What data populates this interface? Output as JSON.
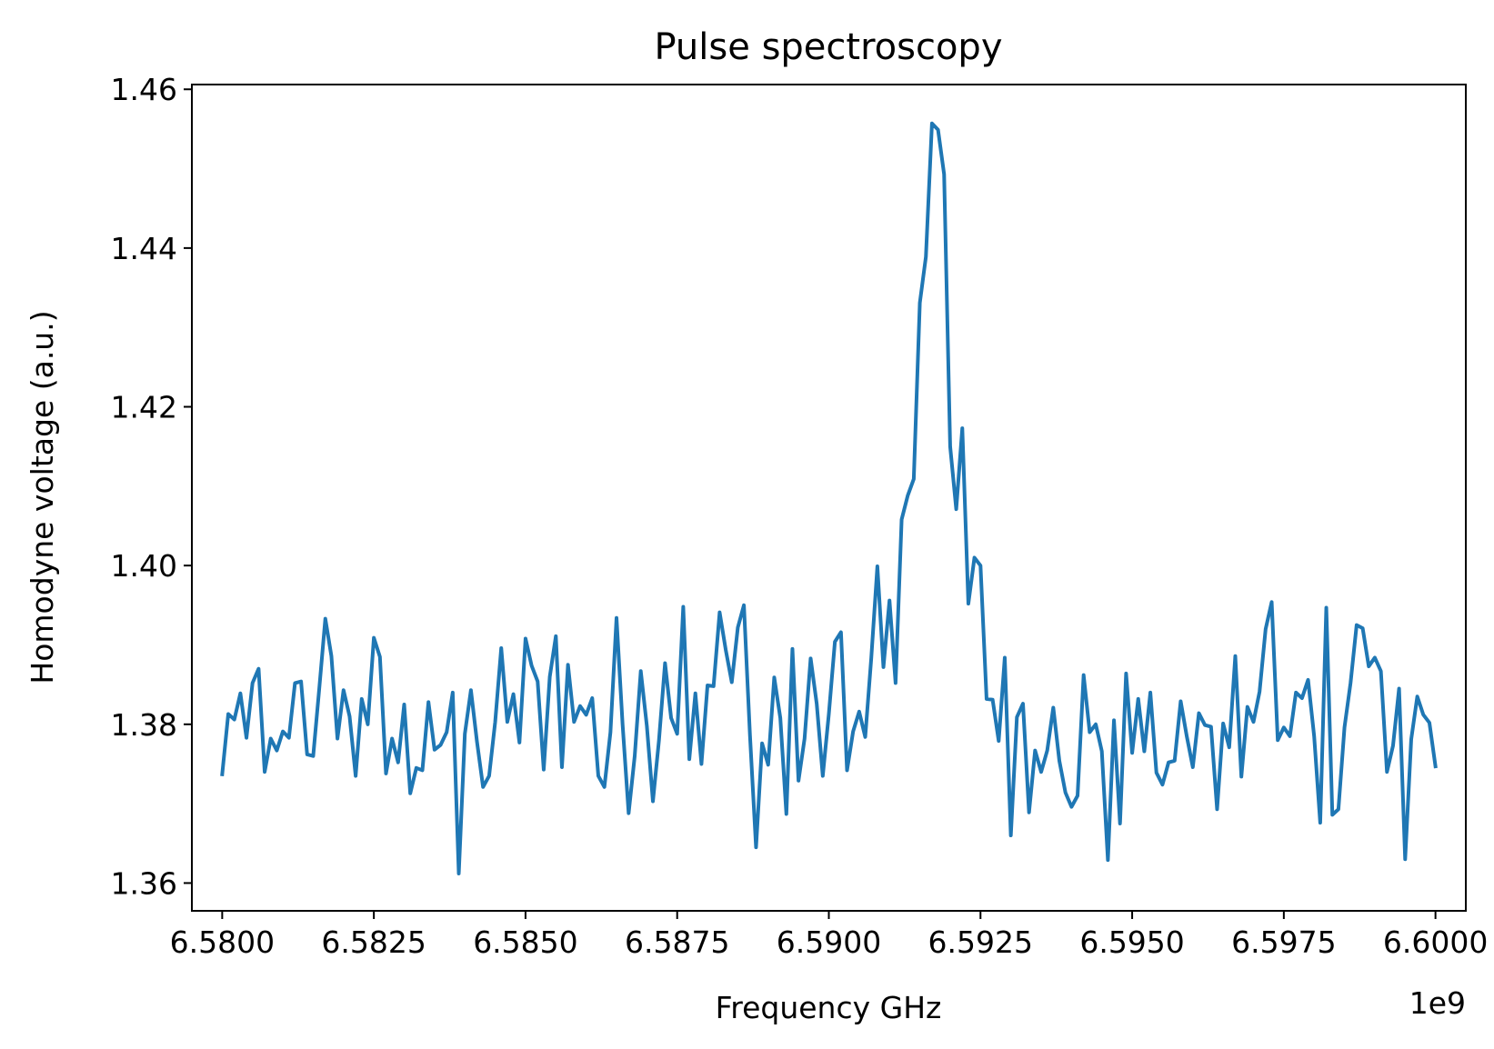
{
  "chart_data": {
    "type": "line",
    "title": "Pulse spectroscopy",
    "xlabel": "Frequency GHz",
    "ylabel": "Homodyne voltage (a.u.)",
    "x_offset_label": "1e9",
    "xlim": [
      6.5795,
      6.6005
    ],
    "ylim": [
      1.3565,
      1.4606
    ],
    "x_ticks": [
      6.58,
      6.5825,
      6.585,
      6.5875,
      6.59,
      6.5925,
      6.595,
      6.5975,
      6.6
    ],
    "x_tick_labels": [
      "6.5800",
      "6.5825",
      "6.5850",
      "6.5875",
      "6.5900",
      "6.5925",
      "6.5950",
      "6.5975",
      "6.6000"
    ],
    "y_ticks": [
      1.36,
      1.38,
      1.4,
      1.42,
      1.44,
      1.46
    ],
    "y_tick_labels": [
      "1.36",
      "1.38",
      "1.40",
      "1.42",
      "1.44",
      "1.46"
    ],
    "grid": false,
    "series_color": "#1f77b4",
    "series": [
      {
        "x_start": 6.58,
        "x_end": 6.6,
        "values": [
          1.3737,
          1.3813,
          1.3806,
          1.3839,
          1.3783,
          1.3852,
          1.387,
          1.374,
          1.3782,
          1.3767,
          1.3791,
          1.3783,
          1.3852,
          1.3854,
          1.3762,
          1.376,
          1.3845,
          1.3933,
          1.3886,
          1.3782,
          1.3843,
          1.381,
          1.3735,
          1.3832,
          1.38,
          1.3909,
          1.3885,
          1.3738,
          1.3782,
          1.3752,
          1.3825,
          1.3713,
          1.3745,
          1.3742,
          1.3828,
          1.3768,
          1.3774,
          1.379,
          1.384,
          1.3612,
          1.3788,
          1.3843,
          1.3778,
          1.3721,
          1.3735,
          1.3803,
          1.3896,
          1.3803,
          1.3838,
          1.3777,
          1.3908,
          1.3874,
          1.3854,
          1.3743,
          1.386,
          1.3911,
          1.3746,
          1.3875,
          1.3803,
          1.3823,
          1.3812,
          1.3833,
          1.3735,
          1.3721,
          1.379,
          1.3934,
          1.38,
          1.3688,
          1.376,
          1.3867,
          1.3798,
          1.3703,
          1.378,
          1.3877,
          1.3808,
          1.3788,
          1.3948,
          1.3756,
          1.3839,
          1.375,
          1.3849,
          1.3848,
          1.3941,
          1.3894,
          1.3853,
          1.3922,
          1.395,
          1.3786,
          1.3645,
          1.3776,
          1.3749,
          1.3859,
          1.3808,
          1.3687,
          1.3895,
          1.3729,
          1.3782,
          1.3883,
          1.3826,
          1.3735,
          1.3813,
          1.3904,
          1.3916,
          1.3742,
          1.3791,
          1.3816,
          1.3784,
          1.3884,
          1.3999,
          1.3872,
          1.3956,
          1.3852,
          1.4058,
          1.4088,
          1.4109,
          1.4331,
          1.4389,
          1.4557,
          1.4549,
          1.4493,
          1.415,
          1.4071,
          1.4173,
          1.3952,
          1.401,
          1.4,
          1.3832,
          1.3831,
          1.3779,
          1.3884,
          1.366,
          1.3809,
          1.3826,
          1.3689,
          1.3767,
          1.374,
          1.3767,
          1.3821,
          1.3754,
          1.3714,
          1.3696,
          1.371,
          1.3862,
          1.379,
          1.38,
          1.3766,
          1.3629,
          1.3805,
          1.3675,
          1.3864,
          1.3764,
          1.3832,
          1.3766,
          1.384,
          1.3739,
          1.3724,
          1.3752,
          1.3754,
          1.3829,
          1.3785,
          1.3746,
          1.3814,
          1.3799,
          1.3797,
          1.3693,
          1.3801,
          1.3771,
          1.3886,
          1.3734,
          1.3822,
          1.3803,
          1.3841,
          1.392,
          1.3954,
          1.378,
          1.3796,
          1.3785,
          1.384,
          1.3833,
          1.3856,
          1.3785,
          1.3676,
          1.3947,
          1.3686,
          1.3693,
          1.3796,
          1.3852,
          1.3925,
          1.3921,
          1.3873,
          1.3884,
          1.3867,
          1.374,
          1.3773,
          1.3845,
          1.363,
          1.3781,
          1.3835,
          1.3812,
          1.3802,
          1.3747
        ]
      }
    ]
  }
}
